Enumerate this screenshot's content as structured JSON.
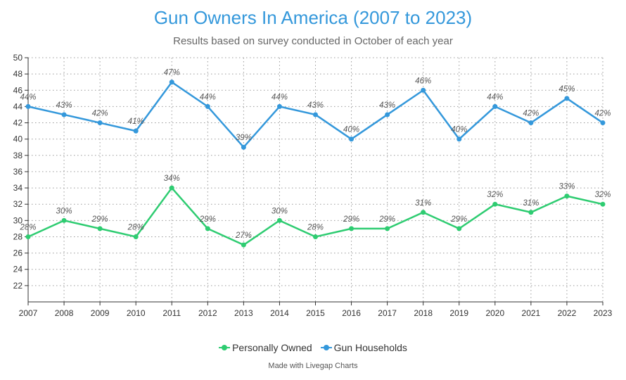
{
  "chart_data": {
    "type": "line",
    "title": "Gun Owners In America (2007 to 2023)",
    "subtitle": "Results based on survey conducted in October of each year",
    "categories": [
      "2007",
      "2008",
      "2009",
      "2010",
      "2011",
      "2012",
      "2013",
      "2014",
      "2015",
      "2016",
      "2017",
      "2018",
      "2019",
      "2020",
      "2021",
      "2022",
      "2023"
    ],
    "ylim": [
      20,
      50
    ],
    "yticks": [
      22,
      24,
      26,
      28,
      30,
      32,
      34,
      36,
      38,
      40,
      42,
      44,
      46,
      48,
      50
    ],
    "grid": true,
    "series": [
      {
        "name": "Personally Owned",
        "color": "#2ecc71",
        "values": [
          28,
          30,
          29,
          28,
          34,
          29,
          27,
          30,
          28,
          29,
          29,
          31,
          29,
          32,
          31,
          33,
          32
        ],
        "labels": [
          "28%",
          "30%",
          "29%",
          "28%",
          "34%",
          "29%",
          "27%",
          "30%",
          "28%",
          "29%",
          "29%",
          "31%",
          "29%",
          "32%",
          "31%",
          "33%",
          "32%"
        ]
      },
      {
        "name": "Gun Households",
        "color": "#3498db",
        "values": [
          44,
          43,
          42,
          41,
          47,
          44,
          39,
          44,
          43,
          40,
          43,
          46,
          40,
          44,
          42,
          45,
          42
        ],
        "labels": [
          "44%",
          "43%",
          "42%",
          "41%",
          "47%",
          "44%",
          "39%",
          "44%",
          "43%",
          "40%",
          "43%",
          "46%",
          "40%",
          "44%",
          "42%",
          "45%",
          "42%"
        ]
      }
    ],
    "legend_position": "bottom-center"
  },
  "credit": "Made with Livegap Charts"
}
